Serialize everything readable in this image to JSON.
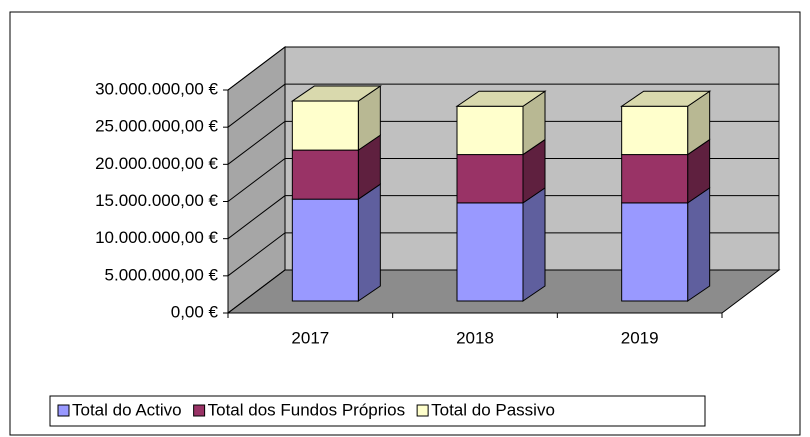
{
  "chart_data": {
    "type": "bar3d_stacked",
    "categories": [
      "2017",
      "2018",
      "2019"
    ],
    "series": [
      {
        "name": "Total do Activo",
        "color": "#9999ff",
        "values": [
          13700000,
          13200000,
          13200000
        ]
      },
      {
        "name": "Total dos Fundos Próprios",
        "color": "#993366",
        "values": [
          6600000,
          6500000,
          6500000
        ]
      },
      {
        "name": "Total do Passivo",
        "color": "#ffffcc",
        "values": [
          6600000,
          6500000,
          6500000
        ]
      }
    ],
    "ylim": [
      0,
      30000000
    ],
    "yticks": [
      {
        "value": 0,
        "label": "0,00 €"
      },
      {
        "value": 5000000,
        "label": "5.000.000,00 €"
      },
      {
        "value": 10000000,
        "label": "10.000.000,00 €"
      },
      {
        "value": 15000000,
        "label": "15.000.000,00 €"
      },
      {
        "value": 20000000,
        "label": "20.000.000,00 €"
      },
      {
        "value": 25000000,
        "label": "25.000.000,00 €"
      },
      {
        "value": 30000000,
        "label": "30.000.000,00 €"
      }
    ],
    "grid": true,
    "legend": "bottom"
  }
}
